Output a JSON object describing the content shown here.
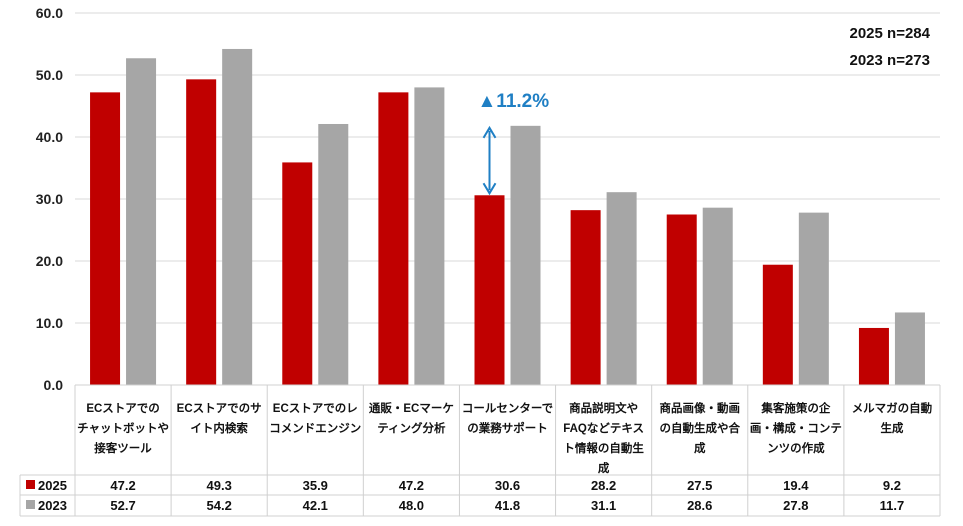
{
  "sample_note": [
    "2025 n=284",
    "2023 n=273"
  ],
  "colors": {
    "series_2025": "#c00000",
    "series_2023": "#a6a6a6",
    "accent": "#1f7fc4"
  },
  "chart_data": {
    "type": "bar",
    "ylim": [
      0,
      60
    ],
    "y_ticks": [
      "0.0",
      "10.0",
      "20.0",
      "30.0",
      "40.0",
      "50.0",
      "60.0"
    ],
    "categories": [
      [
        "ECストアでの",
        "チャットボットや",
        "接客ツール"
      ],
      [
        "ECストアでのサ",
        "イト内検索"
      ],
      [
        "ECストアでのレ",
        "コメンドエンジン"
      ],
      [
        "通販・ECマーケ",
        "ティング分析"
      ],
      [
        "コールセンターで",
        "の業務サポート"
      ],
      [
        "商品説明文や",
        "FAQなどテキス",
        "ト情報の自動生",
        "成"
      ],
      [
        "商品画像・動画",
        "の自動生成や合",
        "成"
      ],
      [
        "集客施策の企",
        "画・構成・コンテ",
        "ンツの作成"
      ],
      [
        "メルマガの自動",
        "生成"
      ]
    ],
    "series": [
      {
        "name": "2025",
        "values": [
          47.2,
          49.3,
          35.9,
          47.2,
          30.6,
          28.2,
          27.5,
          19.4,
          9.2
        ],
        "labels": [
          "47.2",
          "49.3",
          "35.9",
          "47.2",
          "30.6",
          "28.2",
          "27.5",
          "19.4",
          "9.2"
        ]
      },
      {
        "name": "2023",
        "values": [
          52.7,
          54.2,
          42.1,
          48.0,
          41.8,
          31.1,
          28.6,
          27.8,
          11.7
        ],
        "labels": [
          "52.7",
          "54.2",
          "42.1",
          "48.0",
          "41.8",
          "31.1",
          "28.6",
          "27.8",
          "11.7"
        ]
      }
    ],
    "annotation": {
      "text": "▲11.2%",
      "category_index": 4
    },
    "grid": true,
    "legend": "data-table"
  }
}
